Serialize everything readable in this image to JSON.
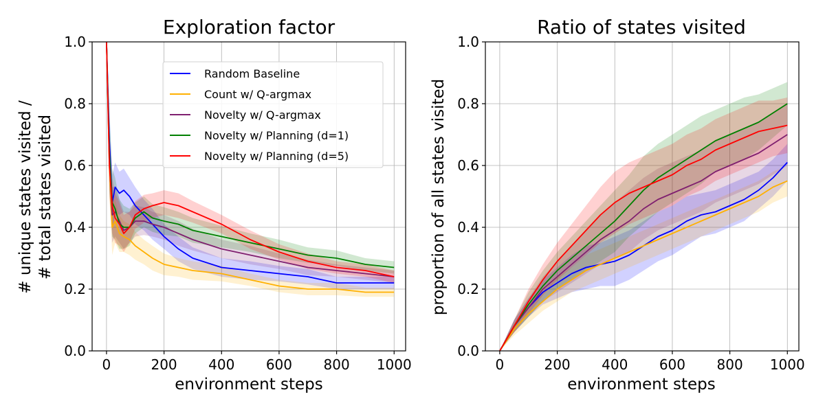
{
  "chart_data": [
    {
      "type": "line",
      "title": "Exploration factor",
      "xlabel": "environment steps",
      "ylabel_lines": [
        "# unique states visited /",
        "# total states visited"
      ],
      "xlim": [
        -50,
        1040
      ],
      "ylim": [
        0,
        1.0
      ],
      "xticks": [
        0,
        200,
        400,
        600,
        800,
        1000
      ],
      "xtick_labels": [
        "0",
        "200",
        "400",
        "600",
        "800",
        "1000"
      ],
      "yticks": [
        0.0,
        0.2,
        0.4,
        0.6,
        0.8,
        1.0
      ],
      "ytick_labels": [
        "0.0",
        "0.2",
        "0.4",
        "0.6",
        "0.8",
        "1.0"
      ],
      "grid": true,
      "legend": "upper center",
      "series": [
        {
          "name": "Random Baseline",
          "color": "#0000ff",
          "x": [
            0,
            10,
            20,
            30,
            45,
            60,
            80,
            100,
            130,
            160,
            200,
            250,
            300,
            400,
            500,
            600,
            700,
            800,
            900,
            1000
          ],
          "y": [
            1.0,
            0.68,
            0.48,
            0.53,
            0.51,
            0.52,
            0.5,
            0.47,
            0.44,
            0.41,
            0.37,
            0.33,
            0.3,
            0.27,
            0.26,
            0.25,
            0.24,
            0.22,
            0.22,
            0.22
          ],
          "band": [
            0.04,
            0.1,
            0.09,
            0.08,
            0.07,
            0.07,
            0.06,
            0.06,
            0.05,
            0.05,
            0.04,
            0.04,
            0.035,
            0.03,
            0.03,
            0.025,
            0.025,
            0.02,
            0.02,
            0.02
          ]
        },
        {
          "name": "Count w/ Q-argmax",
          "color": "#ffb000",
          "x": [
            0,
            10,
            20,
            30,
            45,
            60,
            80,
            100,
            130,
            160,
            200,
            250,
            300,
            400,
            500,
            600,
            700,
            800,
            900,
            1000
          ],
          "y": [
            1.0,
            0.6,
            0.4,
            0.42,
            0.38,
            0.37,
            0.36,
            0.34,
            0.32,
            0.3,
            0.28,
            0.27,
            0.26,
            0.25,
            0.23,
            0.21,
            0.2,
            0.2,
            0.19,
            0.19
          ],
          "band": [
            0.04,
            0.1,
            0.09,
            0.07,
            0.06,
            0.05,
            0.05,
            0.045,
            0.04,
            0.04,
            0.035,
            0.03,
            0.03,
            0.025,
            0.02,
            0.02,
            0.02,
            0.02,
            0.015,
            0.015
          ]
        },
        {
          "name": "Novelty w/ Q-argmax",
          "color": "#7f1f6f",
          "x": [
            0,
            10,
            20,
            30,
            45,
            60,
            80,
            100,
            130,
            160,
            200,
            250,
            300,
            400,
            500,
            600,
            700,
            800,
            900,
            1000
          ],
          "y": [
            1.0,
            0.62,
            0.44,
            0.45,
            0.42,
            0.39,
            0.4,
            0.42,
            0.42,
            0.41,
            0.4,
            0.38,
            0.36,
            0.33,
            0.31,
            0.29,
            0.27,
            0.26,
            0.25,
            0.24
          ],
          "band": [
            0.04,
            0.1,
            0.09,
            0.08,
            0.07,
            0.06,
            0.05,
            0.05,
            0.045,
            0.04,
            0.04,
            0.04,
            0.035,
            0.03,
            0.03,
            0.025,
            0.025,
            0.02,
            0.02,
            0.02
          ]
        },
        {
          "name": "Novelty w/ Planning (d=1)",
          "color": "#008000",
          "x": [
            0,
            10,
            20,
            30,
            45,
            60,
            80,
            100,
            130,
            160,
            200,
            250,
            300,
            400,
            500,
            600,
            700,
            800,
            900,
            1000
          ],
          "y": [
            1.0,
            0.64,
            0.48,
            0.46,
            0.41,
            0.4,
            0.4,
            0.43,
            0.45,
            0.43,
            0.42,
            0.41,
            0.39,
            0.37,
            0.35,
            0.33,
            0.31,
            0.3,
            0.28,
            0.27
          ],
          "band": [
            0.04,
            0.12,
            0.11,
            0.1,
            0.08,
            0.07,
            0.06,
            0.05,
            0.05,
            0.045,
            0.045,
            0.04,
            0.04,
            0.035,
            0.03,
            0.03,
            0.025,
            0.025,
            0.02,
            0.02
          ]
        },
        {
          "name": "Novelty w/ Planning (d=5)",
          "color": "#ff0000",
          "x": [
            0,
            10,
            20,
            30,
            45,
            60,
            80,
            100,
            130,
            160,
            200,
            250,
            300,
            400,
            500,
            600,
            700,
            800,
            900,
            1000
          ],
          "y": [
            1.0,
            0.6,
            0.47,
            0.43,
            0.41,
            0.38,
            0.4,
            0.44,
            0.46,
            0.47,
            0.48,
            0.47,
            0.45,
            0.41,
            0.36,
            0.32,
            0.29,
            0.27,
            0.26,
            0.24
          ],
          "band": [
            0.04,
            0.1,
            0.09,
            0.08,
            0.07,
            0.06,
            0.05,
            0.045,
            0.045,
            0.04,
            0.04,
            0.04,
            0.035,
            0.03,
            0.03,
            0.025,
            0.025,
            0.02,
            0.02,
            0.02
          ]
        }
      ]
    },
    {
      "type": "line",
      "title": "Ratio of states visited",
      "xlabel": "environment steps",
      "ylabel_lines": [
        "proportion of all states visited"
      ],
      "xlim": [
        -50,
        1040
      ],
      "ylim": [
        0,
        1.0
      ],
      "xticks": [
        0,
        200,
        400,
        600,
        800,
        1000
      ],
      "xtick_labels": [
        "0",
        "200",
        "400",
        "600",
        "800",
        "1000"
      ],
      "yticks": [
        0.0,
        0.2,
        0.4,
        0.6,
        0.8,
        1.0
      ],
      "ytick_labels": [
        "0.0",
        "0.2",
        "0.4",
        "0.6",
        "0.8",
        "1.0"
      ],
      "grid": true,
      "series": [
        {
          "name": "Random Baseline",
          "color": "#0000ff",
          "x": [
            0,
            50,
            100,
            150,
            200,
            250,
            300,
            350,
            400,
            450,
            500,
            550,
            600,
            650,
            700,
            750,
            800,
            850,
            900,
            950,
            1000
          ],
          "y": [
            0.0,
            0.08,
            0.14,
            0.19,
            0.22,
            0.25,
            0.27,
            0.28,
            0.29,
            0.31,
            0.34,
            0.37,
            0.39,
            0.42,
            0.44,
            0.45,
            0.47,
            0.49,
            0.52,
            0.56,
            0.61
          ],
          "band": [
            0.0,
            0.02,
            0.03,
            0.04,
            0.05,
            0.06,
            0.07,
            0.07,
            0.08,
            0.08,
            0.08,
            0.08,
            0.08,
            0.08,
            0.07,
            0.07,
            0.07,
            0.07,
            0.06,
            0.06,
            0.06
          ]
        },
        {
          "name": "Count w/ Q-argmax",
          "color": "#ffb000",
          "x": [
            0,
            50,
            100,
            150,
            200,
            250,
            300,
            350,
            400,
            450,
            500,
            550,
            600,
            650,
            700,
            750,
            800,
            850,
            900,
            950,
            1000
          ],
          "y": [
            0.0,
            0.07,
            0.12,
            0.16,
            0.2,
            0.23,
            0.26,
            0.28,
            0.3,
            0.32,
            0.34,
            0.36,
            0.38,
            0.4,
            0.42,
            0.44,
            0.46,
            0.48,
            0.5,
            0.53,
            0.55
          ],
          "band": [
            0.0,
            0.02,
            0.03,
            0.03,
            0.04,
            0.04,
            0.05,
            0.05,
            0.05,
            0.05,
            0.05,
            0.05,
            0.05,
            0.05,
            0.05,
            0.05,
            0.05,
            0.05,
            0.05,
            0.05,
            0.05
          ]
        },
        {
          "name": "Novelty w/ Q-argmax",
          "color": "#7f1f6f",
          "x": [
            0,
            50,
            100,
            150,
            200,
            250,
            300,
            350,
            400,
            450,
            500,
            550,
            600,
            650,
            700,
            750,
            800,
            850,
            900,
            950,
            1000
          ],
          "y": [
            0.0,
            0.08,
            0.14,
            0.2,
            0.24,
            0.28,
            0.32,
            0.36,
            0.39,
            0.42,
            0.46,
            0.49,
            0.51,
            0.53,
            0.55,
            0.58,
            0.6,
            0.62,
            0.64,
            0.67,
            0.7
          ],
          "band": [
            0.0,
            0.02,
            0.03,
            0.04,
            0.05,
            0.06,
            0.07,
            0.08,
            0.09,
            0.1,
            0.1,
            0.1,
            0.1,
            0.1,
            0.1,
            0.1,
            0.1,
            0.1,
            0.1,
            0.1,
            0.1
          ]
        },
        {
          "name": "Novelty w/ Planning (d=1)",
          "color": "#008000",
          "x": [
            0,
            50,
            100,
            150,
            200,
            250,
            300,
            350,
            400,
            450,
            500,
            550,
            600,
            650,
            700,
            750,
            800,
            850,
            900,
            950,
            1000
          ],
          "y": [
            0.0,
            0.08,
            0.15,
            0.21,
            0.26,
            0.3,
            0.34,
            0.38,
            0.42,
            0.47,
            0.52,
            0.56,
            0.59,
            0.62,
            0.65,
            0.68,
            0.7,
            0.72,
            0.74,
            0.77,
            0.8
          ],
          "band": [
            0.0,
            0.02,
            0.04,
            0.05,
            0.06,
            0.07,
            0.08,
            0.09,
            0.1,
            0.1,
            0.11,
            0.11,
            0.11,
            0.11,
            0.11,
            0.1,
            0.1,
            0.1,
            0.09,
            0.08,
            0.07
          ]
        },
        {
          "name": "Novelty w/ Planning (d=5)",
          "color": "#ff0000",
          "x": [
            0,
            50,
            100,
            150,
            200,
            250,
            300,
            350,
            400,
            450,
            500,
            550,
            600,
            650,
            700,
            750,
            800,
            850,
            900,
            950,
            1000
          ],
          "y": [
            0.0,
            0.08,
            0.16,
            0.23,
            0.29,
            0.34,
            0.39,
            0.44,
            0.48,
            0.51,
            0.53,
            0.55,
            0.57,
            0.6,
            0.62,
            0.65,
            0.67,
            0.69,
            0.71,
            0.72,
            0.73
          ],
          "band": [
            0.0,
            0.02,
            0.04,
            0.05,
            0.06,
            0.07,
            0.08,
            0.09,
            0.1,
            0.1,
            0.1,
            0.1,
            0.1,
            0.1,
            0.1,
            0.1,
            0.1,
            0.1,
            0.1,
            0.09,
            0.09
          ]
        }
      ]
    }
  ]
}
